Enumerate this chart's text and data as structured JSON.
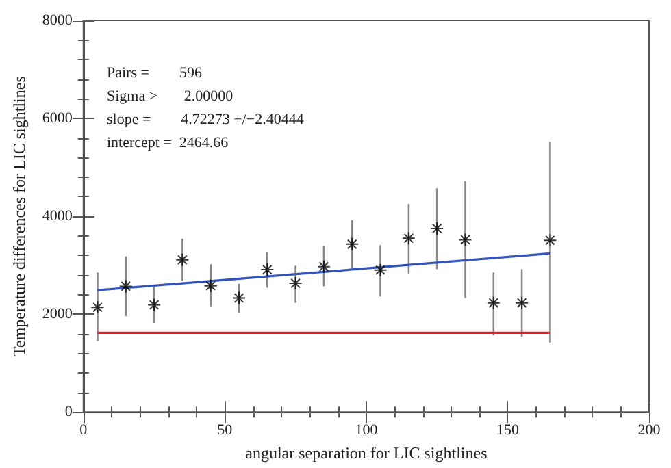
{
  "chart_data": {
    "type": "scatter",
    "xlabel": "angular separation for LIC sightlines",
    "ylabel": "Temperature differences for LIC sightlines",
    "annotations": [
      "Pairs =        596",
      "Sigma >       2.00000",
      "slope =        4.72273 +/−2.40444",
      "intercept =  2464.66"
    ],
    "xlim": [
      0,
      200
    ],
    "xticks": [
      0,
      50,
      100,
      150,
      200
    ],
    "ylim": [
      0,
      8000
    ],
    "yticks": [
      0,
      2000,
      4000,
      6000,
      8000
    ],
    "grid": false,
    "marker": "cross",
    "series": [
      {
        "color": "#000000",
        "x": [
          5,
          15,
          25,
          35,
          45,
          55,
          65,
          75,
          85,
          95,
          105,
          115,
          125,
          135,
          145,
          155,
          165
        ],
        "values": [
          2140,
          2570,
          2190,
          3110,
          2580,
          2330,
          2910,
          2630,
          2970,
          3430,
          2900,
          3550,
          3750,
          3520,
          2230,
          2230,
          3510
        ],
        "errors": [
          [
            1450,
            2850
          ],
          [
            1960,
            3180
          ],
          [
            1820,
            2580
          ],
          [
            2680,
            3540
          ],
          [
            2160,
            3020
          ],
          [
            2030,
            2620
          ],
          [
            2540,
            3270
          ],
          [
            2230,
            2990
          ],
          [
            2570,
            3390
          ],
          [
            2920,
            3920
          ],
          [
            2360,
            3410
          ],
          [
            2830,
            4250
          ],
          [
            2920,
            4570
          ],
          [
            2330,
            4720
          ],
          [
            1570,
            2850
          ],
          [
            1540,
            2920
          ],
          [
            1420,
            5520
          ]
        ]
      },
      {
        "type": "line",
        "color": "#3355bb",
        "x": [
          5,
          165
        ],
        "values": [
          2490,
          3240
        ],
        "marker": "none"
      },
      {
        "type": "line",
        "color": "#e8202a",
        "x": [
          5,
          165
        ],
        "values": [
          1620,
          1620
        ],
        "marker": "none"
      }
    ]
  }
}
